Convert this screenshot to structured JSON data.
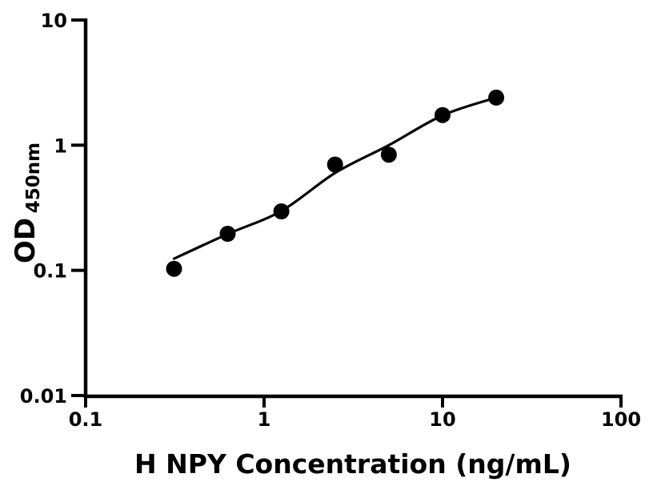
{
  "figure": {
    "background_color": "#ffffff",
    "foreground_color": "#000000"
  },
  "chart_data": {
    "type": "scatter",
    "title": "",
    "xlabel": "H NPY Concentration (ng/mL)",
    "ylabel_main": "OD",
    "ylabel_sub": "450nm",
    "ylabel": "OD450nm",
    "xscale": "log",
    "yscale": "log",
    "xlim": [
      0.1,
      100
    ],
    "ylim": [
      0.01,
      10
    ],
    "grid": false,
    "legend": false,
    "x_ticks": [
      {
        "value": 0.1,
        "label": "0.1"
      },
      {
        "value": 1,
        "label": "1"
      },
      {
        "value": 10,
        "label": "10"
      },
      {
        "value": 100,
        "label": "100"
      }
    ],
    "y_ticks": [
      {
        "value": 0.01,
        "label": "0.01"
      },
      {
        "value": 0.1,
        "label": "0.1"
      },
      {
        "value": 1,
        "label": "1"
      },
      {
        "value": 10,
        "label": "10"
      }
    ],
    "series": [
      {
        "name": "standard-points",
        "type": "scatter",
        "marker": "filled-circle",
        "marker_radius": 10,
        "color": "#000000",
        "points": [
          {
            "x": 0.313,
            "y": 0.103
          },
          {
            "x": 0.625,
            "y": 0.196
          },
          {
            "x": 1.25,
            "y": 0.296
          },
          {
            "x": 2.5,
            "y": 0.7
          },
          {
            "x": 5,
            "y": 0.84
          },
          {
            "x": 10,
            "y": 1.74
          },
          {
            "x": 20,
            "y": 2.4
          }
        ]
      },
      {
        "name": "fitted-curve",
        "type": "line",
        "color": "#000000",
        "stroke_width": 3.2,
        "points": [
          {
            "x": 0.313,
            "y": 0.124
          },
          {
            "x": 0.625,
            "y": 0.195
          },
          {
            "x": 1.25,
            "y": 0.298
          },
          {
            "x": 2.5,
            "y": 0.6
          },
          {
            "x": 5,
            "y": 1.0
          },
          {
            "x": 10,
            "y": 1.73
          },
          {
            "x": 20,
            "y": 2.4
          }
        ]
      }
    ]
  }
}
